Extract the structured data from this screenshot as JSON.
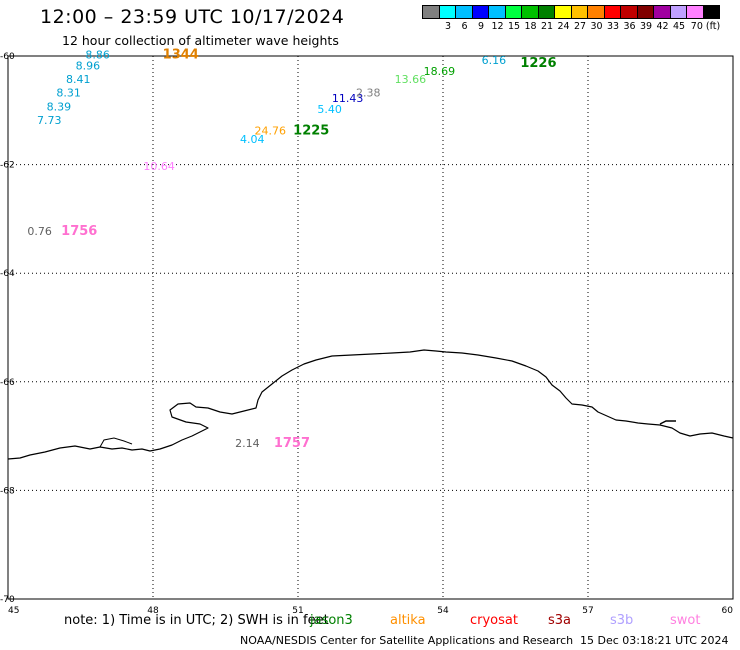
{
  "header": {
    "title": "12:00 – 23:59 UTC 10/17/2024",
    "subtitle": "12 hour collection of altimeter wave heights"
  },
  "colorbar": {
    "colors": [
      "#808080",
      "#00ffff",
      "#00bfff",
      "#0000ff",
      "#00c0ff",
      "#00ff40",
      "#00c000",
      "#008000",
      "#ffff00",
      "#ffc000",
      "#ff8000",
      "#ff0000",
      "#c00000",
      "#800000",
      "#a000a0",
      "#c0a0ff",
      "#ff80ff",
      "#000000"
    ],
    "labels": [
      "3",
      "6",
      "9",
      "12",
      "15",
      "18",
      "21",
      "24",
      "27",
      "30",
      "33",
      "36",
      "39",
      "42",
      "45",
      "70 (ft)"
    ]
  },
  "map": {
    "lon_range": [
      45,
      60
    ],
    "lat_range": [
      -70,
      -60
    ],
    "lon_ticks": [
      "45",
      "48",
      "51",
      "54",
      "57",
      "60"
    ],
    "lat_ticks": [
      "-60",
      "-62",
      "-64",
      "-66",
      "-68",
      "-70"
    ],
    "grid_lons": [
      48,
      51,
      54,
      57
    ],
    "grid_lats": [
      -62,
      -64,
      -66,
      -68
    ]
  },
  "observations": [
    {
      "text": "8.86",
      "lon": 46.6,
      "lat": -60.05,
      "color": "#00a0d0"
    },
    {
      "text": "8.96",
      "lon": 46.4,
      "lat": -60.25,
      "color": "#00a0d0"
    },
    {
      "text": "8.41",
      "lon": 46.2,
      "lat": -60.5,
      "color": "#00a0d0"
    },
    {
      "text": "8.31",
      "lon": 46.0,
      "lat": -60.75,
      "color": "#00a0d0"
    },
    {
      "text": "8.39",
      "lon": 45.8,
      "lat": -61.0,
      "color": "#00a0d0"
    },
    {
      "text": "7.73",
      "lon": 45.6,
      "lat": -61.25,
      "color": "#00a0d0"
    },
    {
      "text": "10.64",
      "lon": 47.8,
      "lat": -62.1,
      "color": "#ff80ff"
    },
    {
      "text": "0.76",
      "lon": 45.4,
      "lat": -63.3,
      "color": "#606060"
    },
    {
      "text": "4.04",
      "lon": 49.8,
      "lat": -61.6,
      "color": "#00c0ff"
    },
    {
      "text": "24.76",
      "lon": 50.1,
      "lat": -61.45,
      "color": "#ffa000"
    },
    {
      "text": "5.40",
      "lon": 51.4,
      "lat": -61.05,
      "color": "#00c0ff"
    },
    {
      "text": "11.43",
      "lon": 51.7,
      "lat": -60.85,
      "color": "#0000c0"
    },
    {
      "text": "2.38",
      "lon": 52.2,
      "lat": -60.75,
      "color": "#808080"
    },
    {
      "text": "13.66",
      "lon": 53.0,
      "lat": -60.5,
      "color": "#60e060"
    },
    {
      "text": "18.69",
      "lon": 53.6,
      "lat": -60.35,
      "color": "#00a000"
    },
    {
      "text": "6.16",
      "lon": 54.8,
      "lat": -60.15,
      "color": "#00a0d0"
    },
    {
      "text": "2.14",
      "lon": 49.7,
      "lat": -67.2,
      "color": "#606060"
    }
  ],
  "pass_times": [
    {
      "text": "1344",
      "lon": 48.2,
      "lat": -60.05,
      "color": "#e08000"
    },
    {
      "text": "1756",
      "lon": 46.1,
      "lat": -63.3,
      "color": "#ff70d0"
    },
    {
      "text": "1225",
      "lon": 50.9,
      "lat": -61.45,
      "color": "#008000"
    },
    {
      "text": "1226",
      "lon": 55.6,
      "lat": -60.2,
      "color": "#008000"
    },
    {
      "text": "1757",
      "lon": 50.5,
      "lat": -67.2,
      "color": "#ff70d0"
    }
  ],
  "footer": {
    "note": "note:  1) Time is in UTC;  2) SWH is in feet",
    "satellites": [
      {
        "name": "jason3",
        "color": "#008000"
      },
      {
        "name": "altika",
        "color": "#ff9000"
      },
      {
        "name": "cryosat",
        "color": "#ff0000"
      },
      {
        "name": "s3a",
        "color": "#a00000"
      },
      {
        "name": "s3b",
        "color": "#b0a0ff"
      },
      {
        "name": "swot",
        "color": "#ff80e0"
      }
    ],
    "credit": "NOAA/NESDIS Center for Satellite Applications and Research",
    "generated": "15 Dec 03:18:21 UTC 2024"
  }
}
